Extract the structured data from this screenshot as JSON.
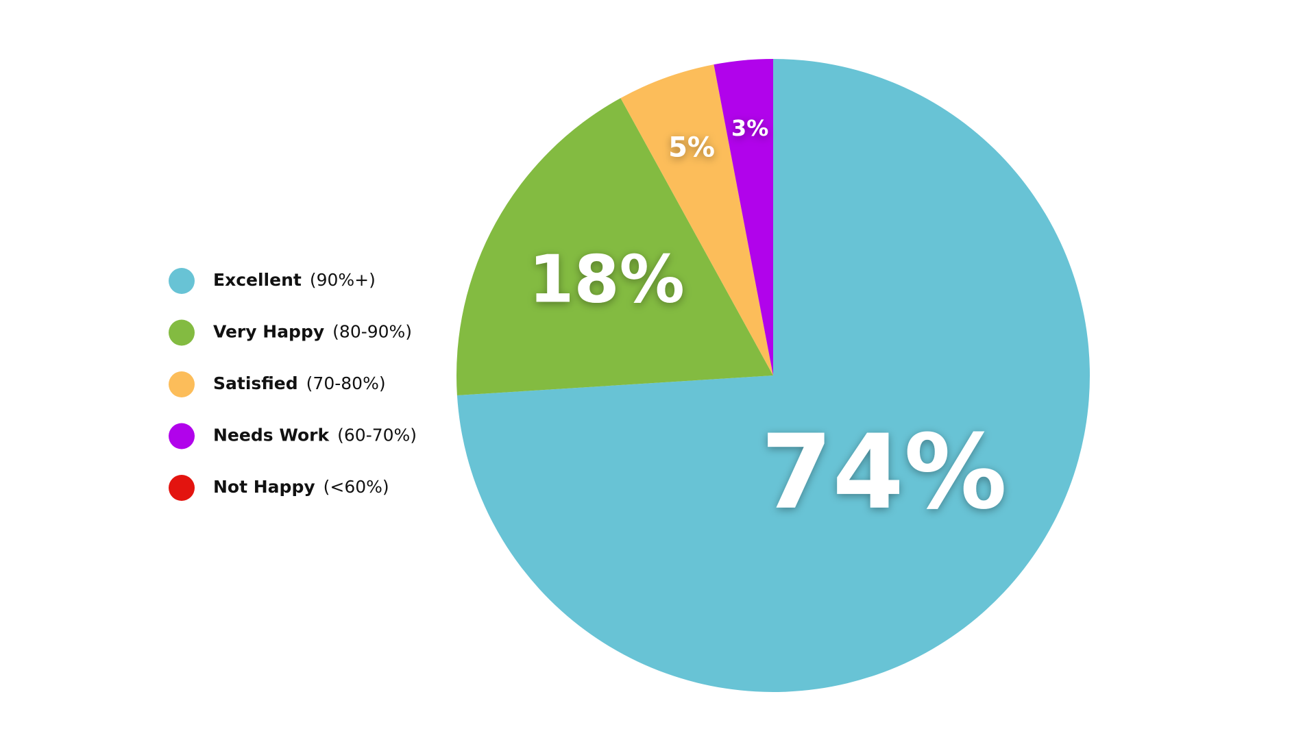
{
  "chart_data": {
    "type": "pie",
    "categories": [
      "Excellent",
      "Very Happy",
      "Satisfied",
      "Needs Work",
      "Not Happy"
    ],
    "ranges": [
      "(90%+)",
      "(80-90%)",
      "(70-80%)",
      "(60-70%)",
      "(<60%)"
    ],
    "values": [
      74,
      18,
      5,
      3,
      0
    ],
    "value_labels": [
      "74%",
      "18%",
      "5%",
      "3%",
      null
    ],
    "colors": [
      "#68c3d5",
      "#83bb41",
      "#fcbd5a",
      "#b103eb",
      "#e3140f"
    ],
    "start_angle": 0,
    "direction": "clockwise",
    "legend": "left"
  }
}
